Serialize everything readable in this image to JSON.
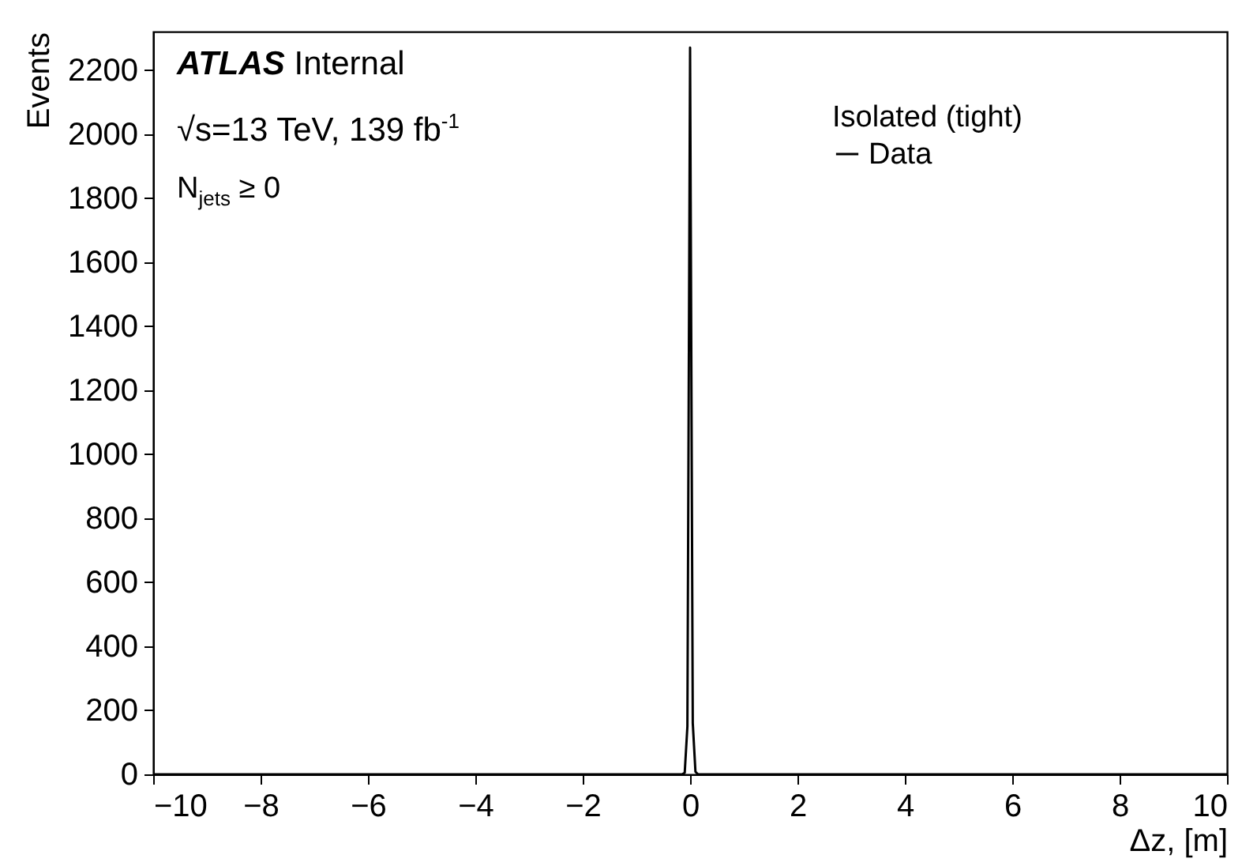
{
  "chart_data": {
    "type": "line",
    "xlabel": "Δz, [m]",
    "ylabel": "Events",
    "legend_title": "Isolated (tight)",
    "annotations": [
      "ATLAS Internal",
      "√s=13 TeV, 139 fb$^{-1}$",
      "N$_{jets}$ ≥ 0"
    ],
    "x": [
      -10,
      -0.15,
      -0.1,
      -0.05,
      0,
      0.05,
      0.1,
      0.15,
      10
    ],
    "series": [
      {
        "name": "Data",
        "color": "#000000",
        "values": [
          0,
          0,
          5,
          150,
          2270,
          160,
          8,
          0,
          0
        ]
      }
    ],
    "xlim": [
      -10,
      10
    ],
    "xticks": [
      -10,
      -8,
      -6,
      -4,
      -2,
      0,
      2,
      4,
      6,
      8,
      10
    ],
    "ylim": [
      0,
      2320
    ],
    "yticks": [
      0,
      200,
      400,
      600,
      800,
      1000,
      1200,
      1400,
      1600,
      1800,
      2000,
      2200
    ],
    "grid": false,
    "legend": "top right",
    "marker": "none",
    "line_style": "solid"
  }
}
